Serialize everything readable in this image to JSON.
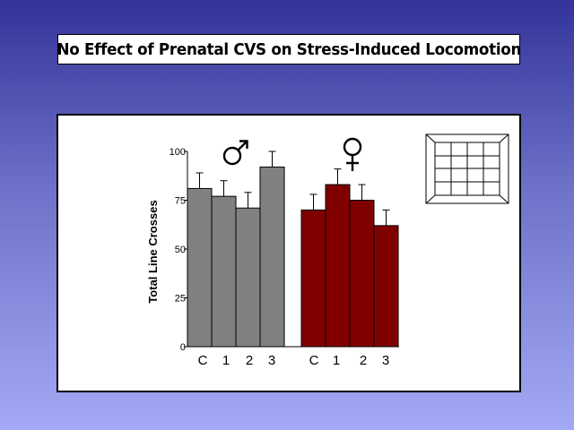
{
  "slide": {
    "title": "No Effect of Prenatal CVS on Stress-Induced Locomotion"
  },
  "colors": {
    "male_bars": "#808080",
    "female_bars": "#800000",
    "background_top": "#333399",
    "background_bottom": "#a3a9f5"
  },
  "icons": {
    "male": "male-symbol-icon",
    "female": "female-symbol-icon",
    "arena": "open-field-arena-icon"
  },
  "chart_data": {
    "type": "bar",
    "ylabel": "Total Line Crosses",
    "ylim": [
      0,
      100
    ],
    "yticks": [
      0,
      25,
      50,
      75,
      100
    ],
    "grid": false,
    "series": [
      {
        "group": "male",
        "categories": [
          "C",
          "1",
          "2",
          "3"
        ],
        "values": [
          81,
          77,
          71,
          92
        ],
        "errors": [
          8,
          8,
          8,
          8
        ]
      },
      {
        "group": "female",
        "categories": [
          "C",
          "1",
          "2",
          "3"
        ],
        "values": [
          70,
          83,
          75,
          62
        ],
        "errors": [
          8,
          8,
          8,
          8
        ]
      }
    ]
  }
}
